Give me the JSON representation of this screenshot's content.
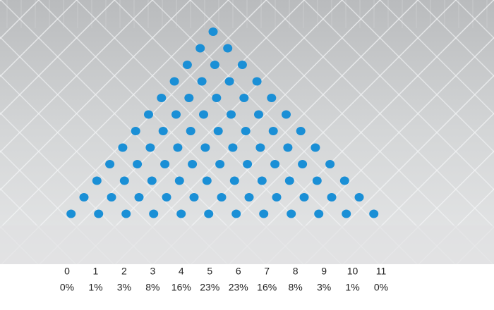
{
  "bins": [
    {
      "label": "0",
      "percent": "0%"
    },
    {
      "label": "1",
      "percent": "1%"
    },
    {
      "label": "2",
      "percent": "3%"
    },
    {
      "label": "3",
      "percent": "8%"
    },
    {
      "label": "4",
      "percent": "16%"
    },
    {
      "label": "5",
      "percent": "23%"
    },
    {
      "label": "6",
      "percent": "23%"
    },
    {
      "label": "7",
      "percent": "16%"
    },
    {
      "label": "8",
      "percent": "8%"
    },
    {
      "label": "9",
      "percent": "3%"
    },
    {
      "label": "10",
      "percent": "1%"
    },
    {
      "label": "11",
      "percent": "0%"
    }
  ]
}
